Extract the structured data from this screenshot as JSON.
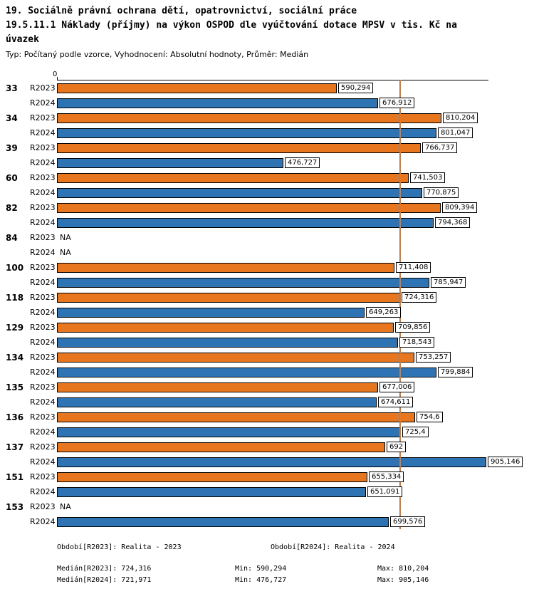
{
  "header": {
    "title_line1": "19. Sociálně právní ochrana dětí, opatrovnictví, sociální práce",
    "title_line2": "19.5.11.1 Náklady (příjmy) na výkon OSPOD dle vyúčtování dotace MPSV v tis. Kč na",
    "title_line3": "úvazek",
    "subtitle": "Typ: Počítaný podle vzorce, Vyhodnocení: Absolutní hodnoty, Průměr: Medián"
  },
  "chart_data": {
    "type": "bar",
    "orientation": "horizontal",
    "x_axis": {
      "zero_label": "0",
      "min": 0,
      "max": 910
    },
    "unit": "tis. Kč na úvazek",
    "series": [
      {
        "name": "R2023",
        "color": "#e8761e"
      },
      {
        "name": "R2024",
        "color": "#2e74b5"
      }
    ],
    "median_lines": [
      {
        "series": "R2024",
        "value": 721.971,
        "color": "#7a8a99"
      },
      {
        "series": "R2023",
        "value": 724.316,
        "color": "#e8761e"
      }
    ],
    "groups": [
      {
        "id": "33",
        "values": [
          590.294,
          676.912
        ],
        "labels": [
          "590,294",
          "676,912"
        ]
      },
      {
        "id": "34",
        "values": [
          810.204,
          801.047
        ],
        "labels": [
          "810,204",
          "801,047"
        ]
      },
      {
        "id": "39",
        "values": [
          766.737,
          476.727
        ],
        "labels": [
          "766,737",
          "476,727"
        ]
      },
      {
        "id": "60",
        "values": [
          741.503,
          770.875
        ],
        "labels": [
          "741,503",
          "770,875"
        ]
      },
      {
        "id": "82",
        "values": [
          809.394,
          794.368
        ],
        "labels": [
          "809,394",
          "794,368"
        ]
      },
      {
        "id": "84",
        "values": [
          null,
          null
        ],
        "labels": [
          "NA",
          "NA"
        ]
      },
      {
        "id": "100",
        "values": [
          711.408,
          785.947
        ],
        "labels": [
          "711,408",
          "785,947"
        ]
      },
      {
        "id": "118",
        "values": [
          724.316,
          649.263
        ],
        "labels": [
          "724,316",
          "649,263"
        ]
      },
      {
        "id": "129",
        "values": [
          709.856,
          718.543
        ],
        "labels": [
          "709,856",
          "718,543"
        ]
      },
      {
        "id": "134",
        "values": [
          753.257,
          799.884
        ],
        "labels": [
          "753,257",
          "799,884"
        ]
      },
      {
        "id": "135",
        "values": [
          677.006,
          674.611
        ],
        "labels": [
          "677,006",
          "674,611"
        ]
      },
      {
        "id": "136",
        "values": [
          754.6,
          725.4
        ],
        "labels": [
          "754,6",
          "725,4"
        ]
      },
      {
        "id": "137",
        "values": [
          692,
          905.146
        ],
        "labels": [
          "692",
          "905,146"
        ]
      },
      {
        "id": "151",
        "values": [
          655.334,
          651.091
        ],
        "labels": [
          "655,334",
          "651,091"
        ]
      },
      {
        "id": "153",
        "values": [
          null,
          699.576
        ],
        "labels": [
          "NA",
          "699,576"
        ]
      }
    ]
  },
  "footer": {
    "period_r2023": "Období[R2023]: Realita - 2023",
    "period_r2024": "Období[R2024]: Realita - 2024",
    "median_r2023": "Medián[R2023]: 724,316",
    "min_r2023": "Min: 590,294",
    "max_r2023": "Max: 810,204",
    "median_r2024": "Medián[R2024]: 721,971",
    "min_r2024": "Min: 476,727",
    "max_r2024": "Max: 905,146"
  }
}
